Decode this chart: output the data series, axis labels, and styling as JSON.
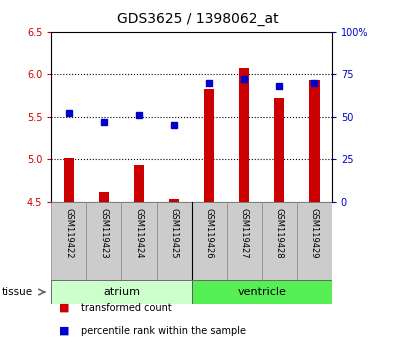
{
  "title": "GDS3625 / 1398062_at",
  "samples": [
    "GSM119422",
    "GSM119423",
    "GSM119424",
    "GSM119425",
    "GSM119426",
    "GSM119427",
    "GSM119428",
    "GSM119429"
  ],
  "transformed_count": [
    5.02,
    4.62,
    4.93,
    4.53,
    5.83,
    6.07,
    5.72,
    5.93
  ],
  "percentile_rank": [
    52,
    47,
    51,
    45,
    70,
    72,
    68,
    70
  ],
  "bar_bottom": 4.5,
  "ylim_left": [
    4.5,
    6.5
  ],
  "ylim_right": [
    0,
    100
  ],
  "yticks_left": [
    4.5,
    5.0,
    5.5,
    6.0,
    6.5
  ],
  "yticks_right": [
    0,
    25,
    50,
    75,
    100
  ],
  "ytick_labels_right": [
    "0",
    "25",
    "50",
    "75",
    "100%"
  ],
  "bar_color": "#cc0000",
  "dot_color": "#0000cc",
  "tissue_groups": [
    {
      "name": "atrium",
      "indices": [
        0,
        1,
        2,
        3
      ],
      "color": "#ccffcc"
    },
    {
      "name": "ventricle",
      "indices": [
        4,
        5,
        6,
        7
      ],
      "color": "#55ee55"
    }
  ],
  "legend_items": [
    {
      "label": "transformed count",
      "color": "#cc0000"
    },
    {
      "label": "percentile rank within the sample",
      "color": "#0000cc"
    }
  ],
  "background_color": "#ffffff",
  "plot_bg_color": "#ffffff",
  "tick_label_color_left": "#cc0000",
  "tick_label_color_right": "#0000cc",
  "label_bg_color": "#cccccc",
  "bar_width": 0.3
}
